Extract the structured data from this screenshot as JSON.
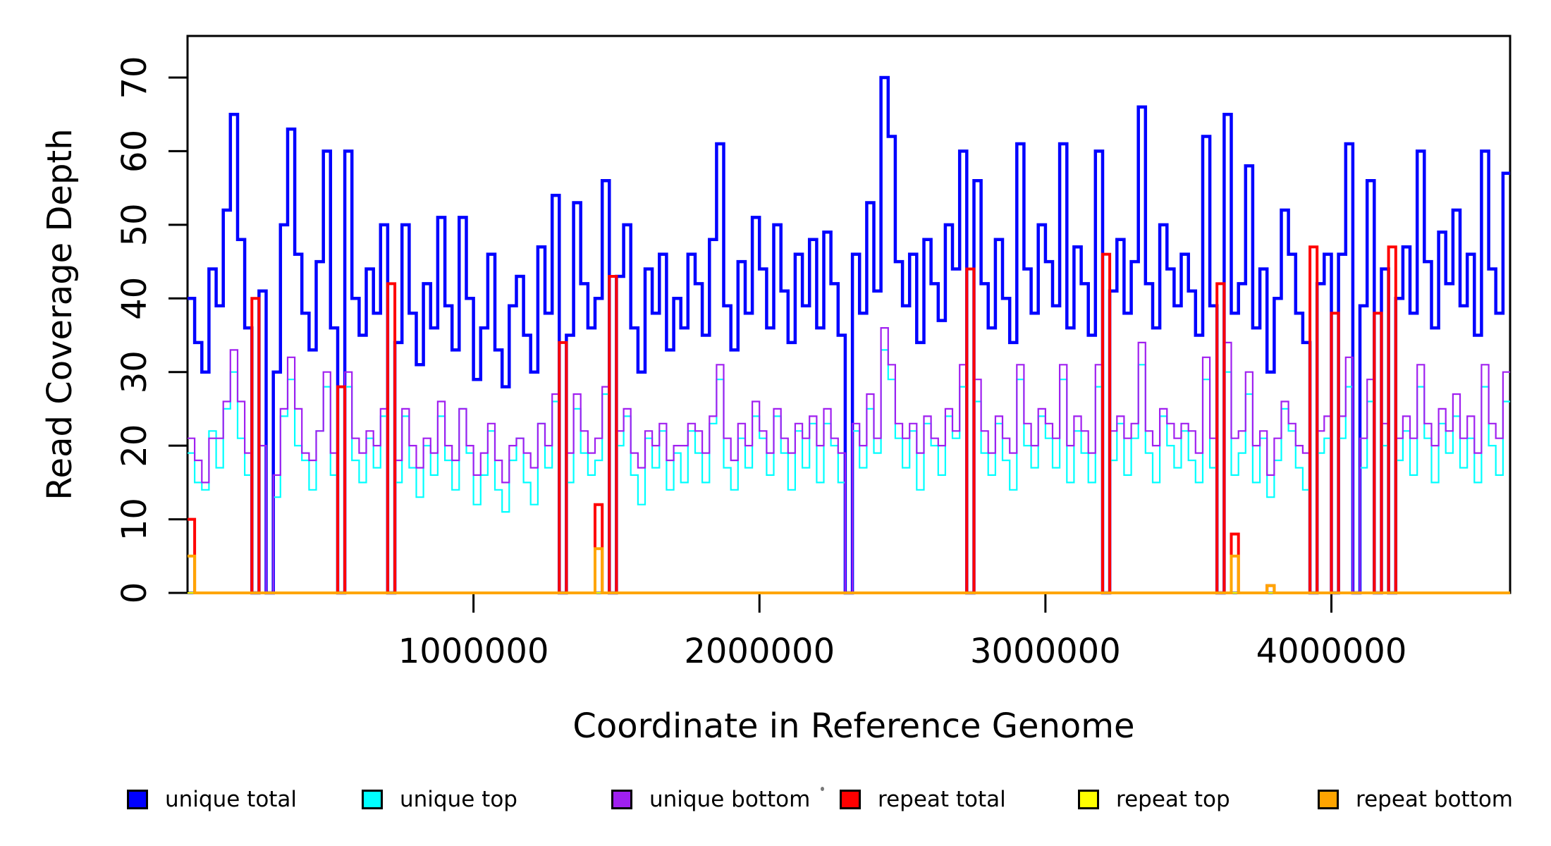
{
  "y_axis": {
    "label": "Read Coverage Depth",
    "tick_values": [
      0,
      10,
      20,
      30,
      40,
      50,
      60,
      70
    ],
    "tick_labels": [
      "0",
      "10",
      "20",
      "30",
      "40",
      "50",
      "60",
      "70"
    ]
  },
  "x_axis": {
    "label": "Coordinate in Reference Genome",
    "tick_values": [
      1000000,
      2000000,
      3000000,
      4000000
    ],
    "tick_labels": [
      "1000000",
      "2000000",
      "3000000",
      "4000000"
    ]
  },
  "legend": {
    "items": [
      {
        "label": "unique total",
        "color": "#0000FF"
      },
      {
        "label": "unique top",
        "color": "#00FFFF"
      },
      {
        "label": "unique bottom",
        "color": "#A020F0"
      },
      {
        "label": "repeat total",
        "color": "#FF0000"
      },
      {
        "label": "repeat top",
        "color": "#FFFF00"
      },
      {
        "label": "repeat bottom",
        "color": "#FFA500"
      }
    ]
  },
  "colors": {
    "axis": "#000000",
    "background": "#FFFFFF"
  },
  "chart_data": {
    "type": "line",
    "step": true,
    "title": "",
    "xlabel": "Coordinate in Reference Genome",
    "ylabel": "Read Coverage Depth",
    "xlim": [
      0,
      4625000
    ],
    "ylim": [
      0,
      70
    ],
    "grid": false,
    "legend_position": "bottom",
    "bin_size": 25000,
    "x_start": 0,
    "series": [
      {
        "name": "unique total",
        "color": "#0000FF",
        "values": [
          40,
          34,
          30,
          44,
          39,
          52,
          65,
          48,
          36,
          0,
          41,
          0,
          30,
          50,
          63,
          46,
          38,
          33,
          45,
          60,
          36,
          0,
          60,
          40,
          35,
          44,
          38,
          50,
          0,
          34,
          50,
          38,
          31,
          42,
          36,
          51,
          39,
          33,
          51,
          40,
          29,
          36,
          46,
          33,
          28,
          39,
          43,
          35,
          30,
          47,
          38,
          54,
          0,
          35,
          53,
          42,
          36,
          40,
          56,
          0,
          43,
          50,
          36,
          30,
          44,
          38,
          46,
          33,
          40,
          36,
          46,
          42,
          35,
          48,
          61,
          39,
          33,
          45,
          38,
          51,
          44,
          36,
          50,
          41,
          34,
          46,
          39,
          48,
          36,
          49,
          42,
          35,
          0,
          46,
          38,
          53,
          41,
          70,
          62,
          45,
          39,
          46,
          34,
          48,
          42,
          37,
          50,
          44,
          60,
          0,
          56,
          42,
          36,
          48,
          40,
          34,
          61,
          44,
          38,
          50,
          45,
          39,
          61,
          36,
          47,
          42,
          35,
          60,
          0,
          41,
          48,
          38,
          45,
          66,
          42,
          36,
          50,
          44,
          39,
          46,
          41,
          35,
          62,
          39,
          0,
          65,
          38,
          42,
          58,
          36,
          44,
          30,
          40,
          52,
          46,
          38,
          34,
          0,
          42,
          46,
          0,
          46,
          61,
          0,
          39,
          56,
          0,
          44,
          0,
          40,
          47,
          38,
          60,
          45,
          36,
          49,
          42,
          52,
          39,
          46,
          35,
          60,
          44,
          38,
          57
        ]
      },
      {
        "name": "unique top",
        "color": "#00FFFF",
        "values": [
          19,
          15,
          14,
          22,
          17,
          25,
          30,
          21,
          16,
          0,
          20,
          0,
          13,
          24,
          29,
          20,
          18,
          14,
          22,
          28,
          16,
          0,
          28,
          18,
          15,
          21,
          17,
          24,
          0,
          15,
          24,
          17,
          13,
          20,
          16,
          24,
          18,
          14,
          25,
          19,
          12,
          16,
          22,
          14,
          11,
          18,
          21,
          15,
          12,
          23,
          17,
          26,
          0,
          15,
          25,
          19,
          16,
          18,
          27,
          0,
          20,
          24,
          16,
          12,
          21,
          17,
          22,
          14,
          19,
          15,
          22,
          19,
          15,
          23,
          29,
          17,
          14,
          21,
          17,
          24,
          21,
          16,
          24,
          19,
          14,
          22,
          17,
          23,
          15,
          23,
          20,
          15,
          0,
          22,
          17,
          25,
          19,
          33,
          29,
          21,
          17,
          22,
          14,
          23,
          20,
          16,
          24,
          21,
          28,
          0,
          26,
          19,
          16,
          23,
          18,
          14,
          29,
          20,
          17,
          24,
          21,
          17,
          29,
          15,
          22,
          19,
          15,
          28,
          0,
          18,
          23,
          16,
          21,
          31,
          19,
          15,
          24,
          20,
          17,
          22,
          18,
          15,
          29,
          17,
          0,
          30,
          16,
          19,
          27,
          15,
          21,
          13,
          18,
          25,
          22,
          17,
          14,
          0,
          19,
          21,
          0,
          21,
          28,
          0,
          17,
          26,
          0,
          20,
          0,
          18,
          22,
          16,
          28,
          21,
          15,
          23,
          19,
          24,
          17,
          21,
          15,
          28,
          20,
          16,
          26
        ]
      },
      {
        "name": "unique bottom",
        "color": "#A020F0",
        "values": [
          21,
          18,
          15,
          21,
          21,
          26,
          33,
          26,
          19,
          0,
          20,
          0,
          16,
          25,
          32,
          25,
          19,
          18,
          22,
          30,
          19,
          0,
          30,
          21,
          19,
          22,
          20,
          25,
          0,
          18,
          25,
          20,
          17,
          21,
          19,
          26,
          20,
          18,
          25,
          20,
          16,
          19,
          23,
          18,
          15,
          20,
          21,
          19,
          17,
          23,
          20,
          27,
          0,
          19,
          27,
          22,
          19,
          21,
          28,
          0,
          22,
          25,
          19,
          17,
          22,
          20,
          23,
          18,
          20,
          20,
          23,
          22,
          19,
          24,
          31,
          21,
          18,
          23,
          20,
          26,
          22,
          19,
          25,
          21,
          19,
          23,
          21,
          24,
          20,
          25,
          21,
          19,
          0,
          23,
          20,
          27,
          21,
          36,
          31,
          23,
          21,
          23,
          19,
          24,
          21,
          20,
          25,
          22,
          31,
          0,
          29,
          22,
          19,
          24,
          21,
          19,
          31,
          23,
          20,
          25,
          23,
          21,
          31,
          20,
          24,
          22,
          19,
          31,
          0,
          22,
          24,
          21,
          23,
          34,
          22,
          20,
          25,
          23,
          21,
          23,
          22,
          19,
          32,
          21,
          0,
          34,
          21,
          22,
          30,
          20,
          22,
          16,
          21,
          26,
          23,
          20,
          19,
          0,
          22,
          24,
          0,
          24,
          32,
          0,
          21,
          29,
          0,
          23,
          0,
          21,
          24,
          21,
          31,
          23,
          20,
          25,
          22,
          27,
          21,
          24,
          19,
          31,
          23,
          21,
          30
        ]
      },
      {
        "name": "repeat total",
        "color": "#FF0000",
        "values": [
          10,
          0,
          0,
          0,
          0,
          0,
          0,
          0,
          0,
          40,
          0,
          0,
          0,
          0,
          0,
          0,
          0,
          0,
          0,
          0,
          0,
          28,
          0,
          0,
          0,
          0,
          0,
          0,
          42,
          0,
          0,
          0,
          0,
          0,
          0,
          0,
          0,
          0,
          0,
          0,
          0,
          0,
          0,
          0,
          0,
          0,
          0,
          0,
          0,
          0,
          0,
          0,
          34,
          0,
          0,
          0,
          0,
          12,
          0,
          43,
          0,
          0,
          0,
          0,
          0,
          0,
          0,
          0,
          0,
          0,
          0,
          0,
          0,
          0,
          0,
          0,
          0,
          0,
          0,
          0,
          0,
          0,
          0,
          0,
          0,
          0,
          0,
          0,
          0,
          0,
          0,
          0,
          0,
          0,
          0,
          0,
          0,
          0,
          0,
          0,
          0,
          0,
          0,
          0,
          0,
          0,
          0,
          0,
          0,
          44,
          0,
          0,
          0,
          0,
          0,
          0,
          0,
          0,
          0,
          0,
          0,
          0,
          0,
          0,
          0,
          0,
          0,
          0,
          46,
          0,
          0,
          0,
          0,
          0,
          0,
          0,
          0,
          0,
          0,
          0,
          0,
          0,
          0,
          0,
          42,
          0,
          8,
          0,
          0,
          0,
          0,
          1,
          0,
          0,
          0,
          0,
          0,
          47,
          0,
          0,
          38,
          0,
          0,
          0,
          0,
          0,
          38,
          0,
          47,
          0,
          0,
          0,
          0,
          0,
          0,
          0,
          0,
          0,
          0,
          0,
          0,
          0,
          0,
          0,
          0
        ]
      },
      {
        "name": "repeat top",
        "color": "#FFFF00",
        "values": [
          0,
          0,
          0,
          0,
          0,
          0,
          0,
          0,
          0,
          0,
          0,
          0,
          0,
          0,
          0,
          0,
          0,
          0,
          0,
          0,
          0,
          0,
          0,
          0,
          0,
          0,
          0,
          0,
          0,
          0,
          0,
          0,
          0,
          0,
          0,
          0,
          0,
          0,
          0,
          0,
          0,
          0,
          0,
          0,
          0,
          0,
          0,
          0,
          0,
          0,
          0,
          0,
          0,
          0,
          0,
          0,
          0,
          0,
          0,
          0,
          0,
          0,
          0,
          0,
          0,
          0,
          0,
          0,
          0,
          0,
          0,
          0,
          0,
          0,
          0,
          0,
          0,
          0,
          0,
          0,
          0,
          0,
          0,
          0,
          0,
          0,
          0,
          0,
          0,
          0,
          0,
          0,
          0,
          0,
          0,
          0,
          0,
          0,
          0,
          0,
          0,
          0,
          0,
          0,
          0,
          0,
          0,
          0,
          0,
          0,
          0,
          0,
          0,
          0,
          0,
          0,
          0,
          0,
          0,
          0,
          0,
          0,
          0,
          0,
          0,
          0,
          0,
          0,
          0,
          0,
          0,
          0,
          0,
          0,
          0,
          0,
          0,
          0,
          0,
          0,
          0,
          0,
          0,
          0,
          0,
          0,
          0,
          0,
          0,
          0,
          0,
          0,
          0,
          0,
          0,
          0,
          0,
          0,
          0,
          0,
          0,
          0,
          0,
          0,
          0,
          0,
          0,
          0,
          0,
          0,
          0,
          0,
          0,
          0,
          0,
          0,
          0,
          0,
          0,
          0,
          0,
          0,
          0,
          0,
          0
        ]
      },
      {
        "name": "repeat bottom",
        "color": "#FFA500",
        "values": [
          5,
          0,
          0,
          0,
          0,
          0,
          0,
          0,
          0,
          0,
          0,
          0,
          0,
          0,
          0,
          0,
          0,
          0,
          0,
          0,
          0,
          0,
          0,
          0,
          0,
          0,
          0,
          0,
          0,
          0,
          0,
          0,
          0,
          0,
          0,
          0,
          0,
          0,
          0,
          0,
          0,
          0,
          0,
          0,
          0,
          0,
          0,
          0,
          0,
          0,
          0,
          0,
          0,
          0,
          0,
          0,
          0,
          6,
          0,
          0,
          0,
          0,
          0,
          0,
          0,
          0,
          0,
          0,
          0,
          0,
          0,
          0,
          0,
          0,
          0,
          0,
          0,
          0,
          0,
          0,
          0,
          0,
          0,
          0,
          0,
          0,
          0,
          0,
          0,
          0,
          0,
          0,
          0,
          0,
          0,
          0,
          0,
          0,
          0,
          0,
          0,
          0,
          0,
          0,
          0,
          0,
          0,
          0,
          0,
          0,
          0,
          0,
          0,
          0,
          0,
          0,
          0,
          0,
          0,
          0,
          0,
          0,
          0,
          0,
          0,
          0,
          0,
          0,
          0,
          0,
          0,
          0,
          0,
          0,
          0,
          0,
          0,
          0,
          0,
          0,
          0,
          0,
          0,
          0,
          0,
          0,
          5,
          0,
          0,
          0,
          0,
          1,
          0,
          0,
          0,
          0,
          0,
          0,
          0,
          0,
          0,
          0,
          0,
          0,
          0,
          0,
          0,
          0,
          0,
          0,
          0,
          0,
          0,
          0,
          0,
          0,
          0,
          0,
          0,
          0,
          0,
          0,
          0,
          0,
          0
        ]
      }
    ]
  }
}
